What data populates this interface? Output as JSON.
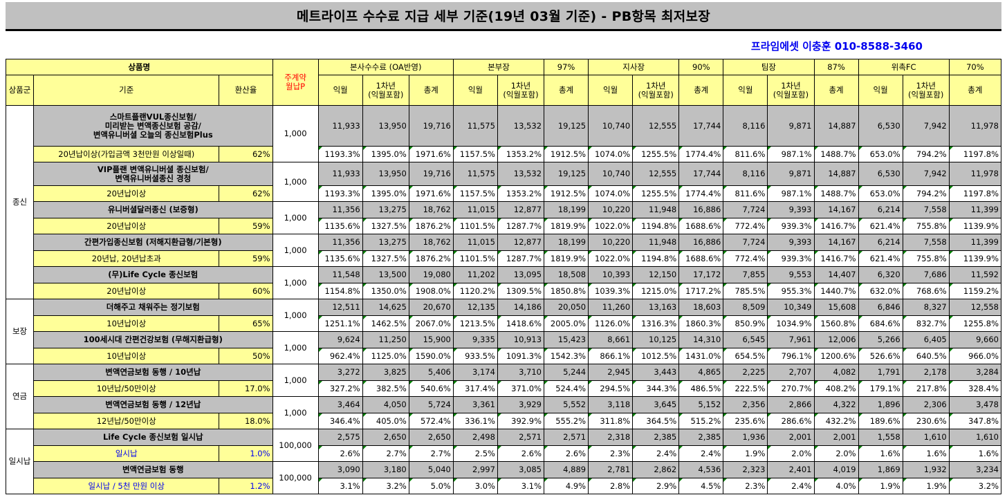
{
  "title": "메트라이프 수수료 지급 세부 기준(19년 03월 기준) - PB항목 최저보장",
  "contact": "프라임에셋 이충훈 010-8588-3460",
  "header": {
    "product_name": "상품명",
    "monthly_premium": "주계약\n월납P",
    "group": "상품군",
    "criteria": "기준",
    "conversion": "환산율",
    "sections": [
      {
        "label": "본사수수료 (OA반영)",
        "pct": ""
      },
      {
        "label": "본부장",
        "pct": "97%"
      },
      {
        "label": "지사장",
        "pct": "90%"
      },
      {
        "label": "팀장",
        "pct": "87%"
      },
      {
        "label": "위촉FC",
        "pct": "70%"
      }
    ],
    "sub": {
      "first": "익월",
      "year1": "1차년\n(익월포함)",
      "total": "총계"
    }
  },
  "groups": [
    {
      "name": "종신",
      "products": [
        {
          "name": "스마트플랜VUL종신보험/\n미리받는 변액종신보험 공감/\n변액유니버셜 오늘의 종신보험Plus",
          "criteria": "20년납이상(가입금액 3천만원 이상일때)",
          "rate": "62%",
          "premium": "1,000",
          "amounts": [
            "11,933",
            "13,950",
            "19,716",
            "11,575",
            "13,532",
            "19,125",
            "10,740",
            "12,555",
            "17,744",
            "8,116",
            "9,871",
            "14,887",
            "6,530",
            "7,942",
            "11,978"
          ],
          "pcts": [
            "1193.3%",
            "1395.0%",
            "1971.6%",
            "1157.5%",
            "1353.2%",
            "1912.5%",
            "1074.0%",
            "1255.5%",
            "1774.4%",
            "811.6%",
            "987.1%",
            "1488.7%",
            "653.0%",
            "794.2%",
            "1197.8%"
          ]
        },
        {
          "name": "VIP플랜 변액유니버셜 종신보험/\n변액유니버셜종신 경청",
          "criteria": "20년납이상",
          "rate": "62%",
          "premium": "1,000",
          "amounts": [
            "11,933",
            "13,950",
            "19,716",
            "11,575",
            "13,532",
            "19,125",
            "10,740",
            "12,555",
            "17,744",
            "8,116",
            "9,871",
            "14,887",
            "6,530",
            "7,942",
            "11,978"
          ],
          "pcts": [
            "1193.3%",
            "1395.0%",
            "1971.6%",
            "1157.5%",
            "1353.2%",
            "1912.5%",
            "1074.0%",
            "1255.5%",
            "1774.4%",
            "811.6%",
            "987.1%",
            "1488.7%",
            "653.0%",
            "794.2%",
            "1197.8%"
          ]
        },
        {
          "name": "유니버셜달러종신 (보증형)",
          "criteria": "20년납이상",
          "rate": "59%",
          "premium": "1,000",
          "amounts": [
            "11,356",
            "13,275",
            "18,762",
            "11,015",
            "12,877",
            "18,199",
            "10,220",
            "11,948",
            "16,886",
            "7,724",
            "9,393",
            "14,167",
            "6,214",
            "7,558",
            "11,399"
          ],
          "pcts": [
            "1135.6%",
            "1327.5%",
            "1876.2%",
            "1101.5%",
            "1287.7%",
            "1819.9%",
            "1022.0%",
            "1194.8%",
            "1688.6%",
            "772.4%",
            "939.3%",
            "1416.7%",
            "621.4%",
            "755.8%",
            "1139.9%"
          ]
        },
        {
          "name": "간편가입종신보험 (저해지환급형/기본형)",
          "criteria": "20년납, 20년납초과",
          "rate": "59%",
          "premium": "1,000",
          "amounts": [
            "11,356",
            "13,275",
            "18,762",
            "11,015",
            "12,877",
            "18,199",
            "10,220",
            "11,948",
            "16,886",
            "7,724",
            "9,393",
            "14,167",
            "6,214",
            "7,558",
            "11,399"
          ],
          "pcts": [
            "1135.6%",
            "1327.5%",
            "1876.2%",
            "1101.5%",
            "1287.7%",
            "1819.9%",
            "1022.0%",
            "1194.8%",
            "1688.6%",
            "772.4%",
            "939.3%",
            "1416.7%",
            "621.4%",
            "755.8%",
            "1139.9%"
          ]
        },
        {
          "name": "(무)Life Cycle 종신보험",
          "criteria": "20년납이상",
          "rate": "60%",
          "premium": "1,000",
          "amounts": [
            "11,548",
            "13,500",
            "19,080",
            "11,202",
            "13,095",
            "18,508",
            "10,393",
            "12,150",
            "17,172",
            "7,855",
            "9,553",
            "14,407",
            "6,320",
            "7,686",
            "11,592"
          ],
          "pcts": [
            "1154.8%",
            "1350.0%",
            "1908.0%",
            "1120.2%",
            "1309.5%",
            "1850.8%",
            "1039.3%",
            "1215.0%",
            "1717.2%",
            "785.5%",
            "955.3%",
            "1440.7%",
            "632.0%",
            "768.6%",
            "1159.2%"
          ]
        }
      ]
    },
    {
      "name": "보장",
      "products": [
        {
          "name": "더해주고 채워주는 정기보험",
          "criteria": "10년납이상",
          "rate": "65%",
          "premium": "1,000",
          "amounts": [
            "12,511",
            "14,625",
            "20,670",
            "12,135",
            "14,186",
            "20,050",
            "11,260",
            "13,163",
            "18,603",
            "8,509",
            "10,349",
            "15,608",
            "6,846",
            "8,327",
            "12,558"
          ],
          "pcts": [
            "1251.1%",
            "1462.5%",
            "2067.0%",
            "1213.5%",
            "1418.6%",
            "2005.0%",
            "1126.0%",
            "1316.3%",
            "1860.3%",
            "850.9%",
            "1034.9%",
            "1560.8%",
            "684.6%",
            "832.7%",
            "1255.8%"
          ]
        },
        {
          "name": "100세시대 간편건강보험 (무해지환급형)",
          "criteria": "10년납이상",
          "rate": "50%",
          "premium": "1,000",
          "amounts": [
            "9,624",
            "11,250",
            "15,900",
            "9,335",
            "10,913",
            "15,423",
            "8,661",
            "10,125",
            "14,310",
            "6,545",
            "7,961",
            "12,006",
            "5,266",
            "6,405",
            "9,660"
          ],
          "pcts": [
            "962.4%",
            "1125.0%",
            "1590.0%",
            "933.5%",
            "1091.3%",
            "1542.3%",
            "866.1%",
            "1012.5%",
            "1431.0%",
            "654.5%",
            "796.1%",
            "1200.6%",
            "526.6%",
            "640.5%",
            "966.0%"
          ]
        }
      ]
    },
    {
      "name": "연금",
      "products": [
        {
          "name": "변액연금보험 동행 / 10년납",
          "criteria": "10년납/50만이상",
          "rate": "17.0%",
          "premium": "1,000",
          "amounts": [
            "3,272",
            "3,825",
            "5,406",
            "3,174",
            "3,710",
            "5,244",
            "2,945",
            "3,443",
            "4,865",
            "2,225",
            "2,707",
            "4,082",
            "1,791",
            "2,178",
            "3,284"
          ],
          "pcts": [
            "327.2%",
            "382.5%",
            "540.6%",
            "317.4%",
            "371.0%",
            "524.4%",
            "294.5%",
            "344.3%",
            "486.5%",
            "222.5%",
            "270.7%",
            "408.2%",
            "179.1%",
            "217.8%",
            "328.4%"
          ]
        },
        {
          "name": "변액연금보험 동행 / 12년납",
          "criteria": "12년납/50만이상",
          "rate": "18.0%",
          "premium": "1,000",
          "amounts": [
            "3,464",
            "4,050",
            "5,724",
            "3,361",
            "3,929",
            "5,552",
            "3,118",
            "3,645",
            "5,152",
            "2,356",
            "2,866",
            "4,322",
            "1,896",
            "2,306",
            "3,478"
          ],
          "pcts": [
            "346.4%",
            "405.0%",
            "572.4%",
            "336.1%",
            "392.9%",
            "555.2%",
            "311.8%",
            "364.5%",
            "515.2%",
            "235.6%",
            "286.6%",
            "432.2%",
            "189.6%",
            "230.6%",
            "347.8%"
          ]
        }
      ]
    },
    {
      "name": "일시납",
      "products": [
        {
          "name": "Life Cycle 종신보험 일시납",
          "criteria": "일시납",
          "rate": "1.0%",
          "premium": "100,000",
          "amounts": [
            "2,575",
            "2,650",
            "2,650",
            "2,498",
            "2,571",
            "2,571",
            "2,318",
            "2,385",
            "2,385",
            "1,936",
            "2,001",
            "2,001",
            "1,558",
            "1,610",
            "1,610"
          ],
          "pcts": [
            "2.6%",
            "2.7%",
            "2.7%",
            "2.5%",
            "2.6%",
            "2.6%",
            "2.3%",
            "2.4%",
            "2.4%",
            "1.9%",
            "2.0%",
            "2.0%",
            "1.6%",
            "1.6%",
            "1.6%"
          ]
        },
        {
          "name": "변액연금보험 동행",
          "criteria": "일시납 / 5천 만원 이상",
          "rate": "1.2%",
          "premium": "100,000",
          "amounts": [
            "3,090",
            "3,180",
            "5,040",
            "2,997",
            "3,085",
            "4,889",
            "2,781",
            "2,862",
            "4,536",
            "2,323",
            "2,401",
            "4,019",
            "1,869",
            "1,932",
            "3,234"
          ],
          "pcts": [
            "3.1%",
            "3.2%",
            "5.0%",
            "3.0%",
            "3.1%",
            "4.9%",
            "2.8%",
            "2.9%",
            "4.5%",
            "2.3%",
            "2.4%",
            "4.0%",
            "1.9%",
            "1.9%",
            "3.2%"
          ]
        }
      ]
    }
  ]
}
